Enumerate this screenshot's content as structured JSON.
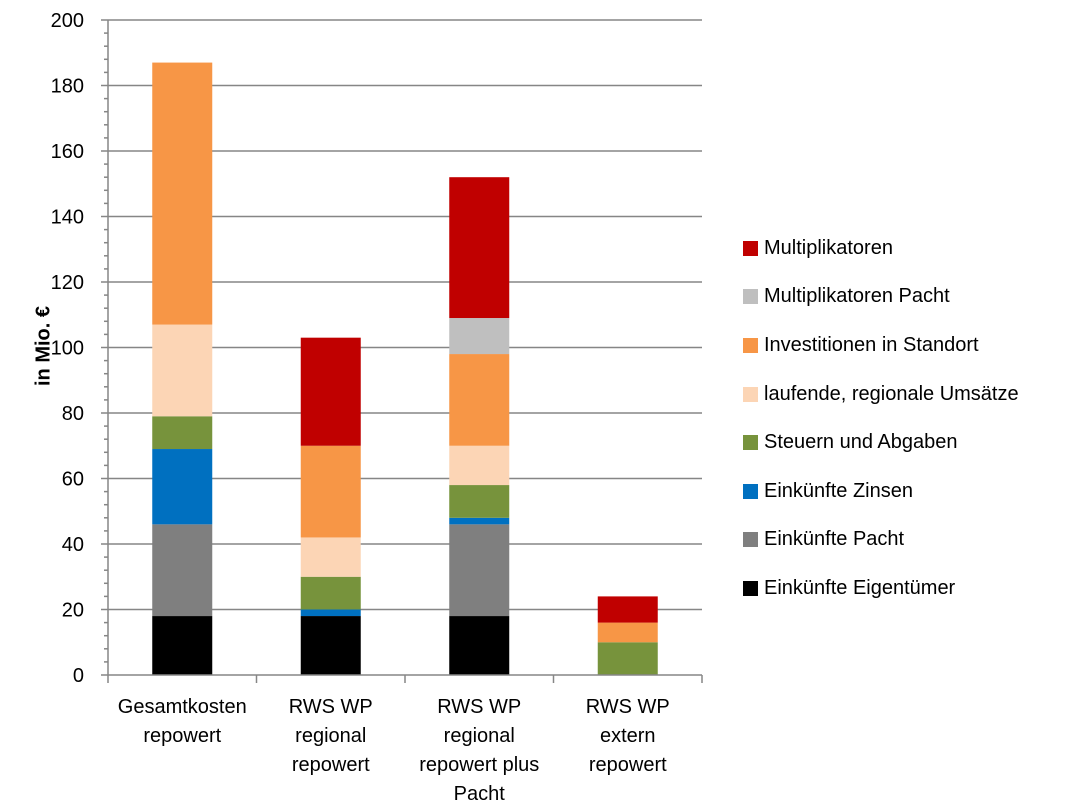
{
  "chart_data": {
    "type": "bar",
    "stacked": true,
    "ylabel": "in Mio. €",
    "ylim": [
      0,
      200
    ],
    "yticks": [
      0,
      20,
      40,
      60,
      80,
      100,
      120,
      140,
      160,
      180,
      200
    ],
    "grid": true,
    "legend_position": "right",
    "categories": [
      [
        "Gesamtkosten",
        "repowert"
      ],
      [
        "RWS WP",
        "regional",
        "repowert"
      ],
      [
        "RWS WP",
        "regional",
        "repowert plus",
        "Pacht"
      ],
      [
        "RWS WP",
        "extern",
        "repowert"
      ]
    ],
    "series": [
      {
        "name": "Einkünfte Eigentümer",
        "color": "#000000",
        "values": [
          18,
          18,
          18,
          0
        ]
      },
      {
        "name": "Einkünfte Pacht",
        "color": "#7f7f7f",
        "values": [
          28,
          0,
          28,
          0
        ]
      },
      {
        "name": "Einkünfte Zinsen",
        "color": "#0070c0",
        "values": [
          23,
          2,
          2,
          0
        ]
      },
      {
        "name": "Steuern und Abgaben",
        "color": "#77933c",
        "values": [
          10,
          10,
          10,
          10
        ]
      },
      {
        "name": "laufende, regionale Umsätze",
        "color": "#fcd5b5",
        "values": [
          28,
          12,
          12,
          0
        ]
      },
      {
        "name": "Investitionen in Standort",
        "color": "#f79646",
        "values": [
          80,
          28,
          28,
          6
        ]
      },
      {
        "name": "Multiplikatoren Pacht",
        "color": "#bfbfbf",
        "values": [
          0,
          0,
          11,
          0
        ]
      },
      {
        "name": "Multiplikatoren",
        "color": "#c00000",
        "values": [
          0,
          33,
          43,
          8
        ]
      }
    ]
  }
}
